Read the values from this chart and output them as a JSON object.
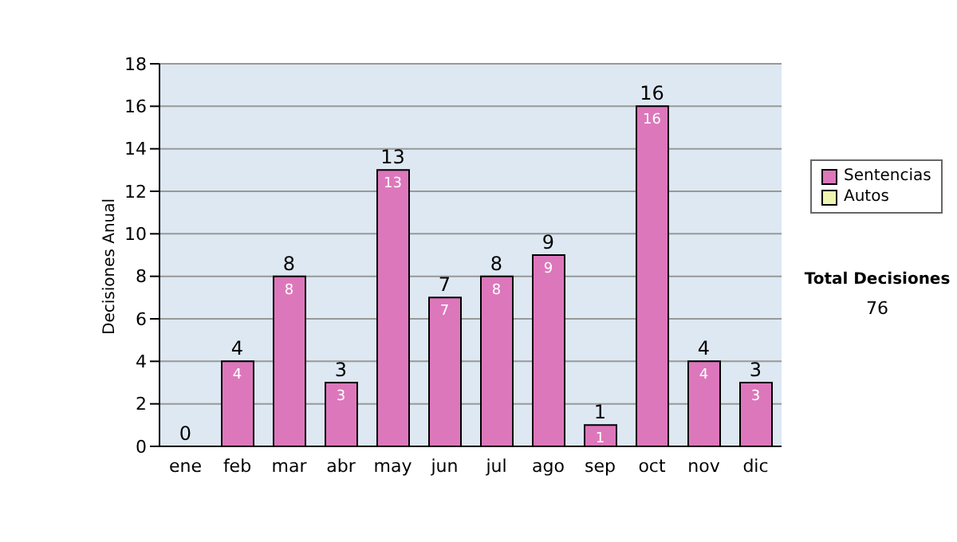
{
  "chart_data": {
    "type": "bar",
    "ylabel": "Decisiones Anual",
    "categories": [
      "ene",
      "feb",
      "mar",
      "abr",
      "may",
      "jun",
      "jul",
      "ago",
      "sep",
      "oct",
      "nov",
      "dic"
    ],
    "series": [
      {
        "name": "Sentencias",
        "color": "#dd77bb",
        "values": [
          0,
          4,
          8,
          3,
          13,
          7,
          8,
          9,
          1,
          16,
          4,
          3
        ],
        "value_labels": [
          null,
          "4",
          "8",
          "3",
          "13",
          "7",
          "8",
          "9",
          "1",
          "16",
          "4",
          "3"
        ]
      },
      {
        "name": "Autos",
        "color": "#eef5b0",
        "values": [
          0,
          0,
          0,
          0,
          0,
          0,
          0,
          0,
          0,
          0,
          0,
          0
        ]
      }
    ],
    "stacked": true,
    "totals": [
      "0",
      "4",
      "8",
      "3",
      "13",
      "7",
      "8",
      "9",
      "1",
      "16",
      "4",
      "3"
    ],
    "ylim": [
      0,
      18
    ],
    "yticks": [
      0,
      2,
      4,
      6,
      8,
      10,
      12,
      14,
      16,
      18
    ],
    "grid": "y",
    "legend": "right",
    "annotations": [
      "Total Decisiones",
      "76"
    ]
  }
}
